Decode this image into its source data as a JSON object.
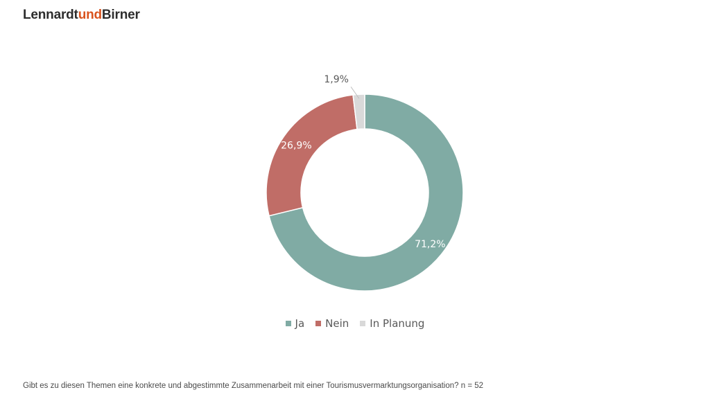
{
  "brand": {
    "part1": "Lennardt",
    "part2": "und",
    "part3": "Birner",
    "accent_color": "#d9531e"
  },
  "footnote": "Gibt es zu diesen Themen eine konkrete und abgestimmte Zusammenarbeit mit einer Tourismusvermarktungsorganisation? n = 52",
  "chart_data": {
    "type": "pie",
    "subtype": "donut",
    "title": "",
    "categories": [
      "Ja",
      "Nein",
      "In Planung"
    ],
    "values": [
      71.2,
      26.9,
      1.9
    ],
    "labels": [
      "71,2%",
      "26,9%",
      "1,9%"
    ],
    "colors": [
      "#80aba4",
      "#c06d67",
      "#d9d9d9"
    ],
    "legend_position": "bottom",
    "n": 52
  }
}
